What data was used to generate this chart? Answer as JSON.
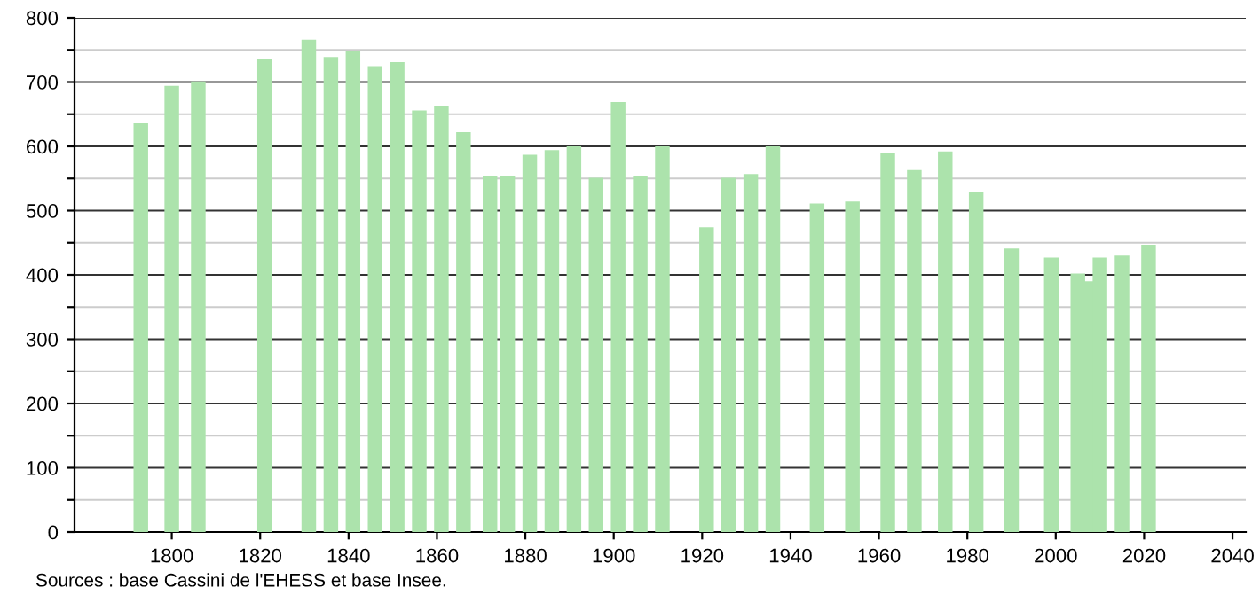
{
  "chart_data": {
    "type": "bar",
    "x": [
      1793,
      1800,
      1806,
      1821,
      1831,
      1836,
      1841,
      1846,
      1851,
      1856,
      1861,
      1866,
      1872,
      1876,
      1881,
      1886,
      1891,
      1896,
      1901,
      1906,
      1911,
      1921,
      1926,
      1931,
      1936,
      1946,
      1954,
      1962,
      1968,
      1975,
      1982,
      1990,
      1999,
      2005,
      2007,
      2010,
      2015,
      2021
    ],
    "values": [
      636,
      694,
      701,
      736,
      766,
      739,
      748,
      725,
      731,
      656,
      662,
      622,
      553,
      553,
      587,
      594,
      600,
      551,
      669,
      553,
      600,
      474,
      551,
      557,
      600,
      511,
      514,
      590,
      563,
      592,
      529,
      441,
      427,
      402,
      390,
      427,
      430,
      447
    ],
    "color": "#ace3ac",
    "xlim": [
      1778,
      2043
    ],
    "xticks": [
      1800,
      1820,
      1840,
      1860,
      1880,
      1900,
      1920,
      1940,
      1960,
      1980,
      2000,
      2020,
      2040
    ],
    "ylim": [
      0,
      800
    ],
    "yticks": [
      0,
      {
        "value": 50,
        "label": null
      },
      100,
      {
        "value": 150,
        "label": null
      },
      200,
      {
        "value": 250,
        "label": null
      },
      300,
      {
        "value": 350,
        "label": null
      },
      400,
      {
        "value": 450,
        "label": null
      },
      500,
      {
        "value": 550,
        "label": null
      },
      600,
      {
        "value": 650,
        "label": null
      },
      700,
      {
        "value": 750,
        "label": null
      },
      800
    ],
    "grid": "y",
    "annotations": [
      "Sources : base Cassini de l'EHESS et base Insee."
    ]
  }
}
